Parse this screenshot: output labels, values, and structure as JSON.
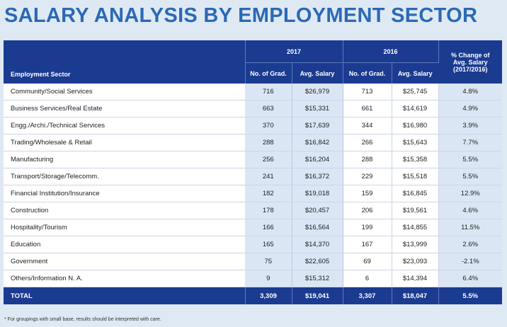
{
  "title": "SALARY ANALYSIS BY EMPLOYMENT SECTOR",
  "header": {
    "sector": "Employment Sector",
    "year_a": "2017",
    "year_b": "2016",
    "no_grad": "No. of Grad.",
    "avg_salary": "Avg. Salary",
    "change_line1": "% Change of",
    "change_line2": "Avg. Salary",
    "change_line3": "(2017/2016)"
  },
  "rows": [
    {
      "sector": "Community/Social Services",
      "grad_2017": "716",
      "sal_2017": "$26,979",
      "grad_2016": "713",
      "sal_2016": "$25,745",
      "change": "4.8%"
    },
    {
      "sector": "Business Services/Real Estate",
      "grad_2017": "663",
      "sal_2017": "$15,331",
      "grad_2016": "661",
      "sal_2016": "$14,619",
      "change": "4.9%"
    },
    {
      "sector": "Engg./Archi./Technical Services",
      "grad_2017": "370",
      "sal_2017": "$17,639",
      "grad_2016": "344",
      "sal_2016": "$16,980",
      "change": "3.9%"
    },
    {
      "sector": "Trading/Wholesale & Retail",
      "grad_2017": "288",
      "sal_2017": "$16,842",
      "grad_2016": "266",
      "sal_2016": "$15,643",
      "change": "7.7%"
    },
    {
      "sector": "Manufacturing",
      "grad_2017": "256",
      "sal_2017": "$16,204",
      "grad_2016": "288",
      "sal_2016": "$15,358",
      "change": "5.5%"
    },
    {
      "sector": "Transport/Storage/Telecomm.",
      "grad_2017": "241",
      "sal_2017": "$16,372",
      "grad_2016": "229",
      "sal_2016": "$15,518",
      "change": "5.5%"
    },
    {
      "sector": "Financial Institution/Insurance",
      "grad_2017": "182",
      "sal_2017": "$19,018",
      "grad_2016": "159",
      "sal_2016": "$16,845",
      "change": "12.9%"
    },
    {
      "sector": "Construction",
      "grad_2017": "178",
      "sal_2017": "$20,457",
      "grad_2016": "206",
      "sal_2016": "$19,561",
      "change": "4.6%"
    },
    {
      "sector": "Hospitality/Tourism",
      "grad_2017": "166",
      "sal_2017": "$16,564",
      "grad_2016": "199",
      "sal_2016": "$14,855",
      "change": "11.5%"
    },
    {
      "sector": "Education",
      "grad_2017": "165",
      "sal_2017": "$14,370",
      "grad_2016": "167",
      "sal_2016": "$13,999",
      "change": "2.6%"
    },
    {
      "sector": "Government",
      "grad_2017": "75",
      "sal_2017": "$22,605",
      "grad_2016": "69",
      "sal_2016": "$23,093",
      "change": "-2.1%"
    },
    {
      "sector": "Others/Information N. A.",
      "grad_2017": "9",
      "sal_2017": "$15,312",
      "grad_2016": "6",
      "sal_2016": "$14,394",
      "change": "6.4%"
    }
  ],
  "total": {
    "label": "TOTAL",
    "grad_2017": "3,309",
    "sal_2017": "$19,041",
    "grad_2016": "3,307",
    "sal_2016": "$18,047",
    "change": "5.5%"
  },
  "footnote": "* For groupings with small base, results should be interpreted with care."
}
